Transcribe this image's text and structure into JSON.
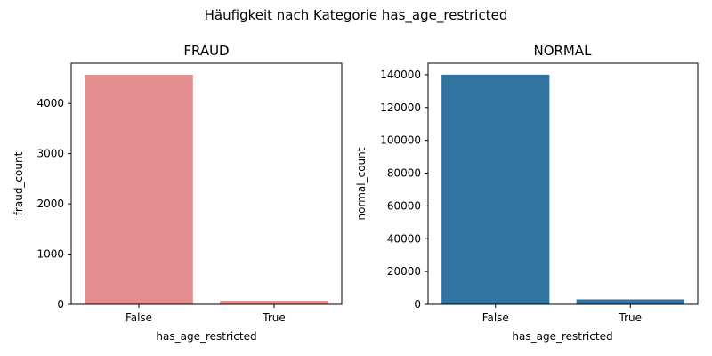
{
  "figure_title": "Häufigkeit nach Kategorie has_age_restricted",
  "chart_data": [
    {
      "type": "bar",
      "title": "FRAUD",
      "xlabel": "has_age_restricted",
      "ylabel": "fraud_count",
      "categories": [
        "False",
        "True"
      ],
      "values": [
        4570,
        70
      ],
      "ylim": [
        0,
        4800
      ],
      "yticks": [
        0,
        1000,
        2000,
        3000,
        4000
      ],
      "color": "#e48e8f",
      "grid": false
    },
    {
      "type": "bar",
      "title": "NORMAL",
      "xlabel": "has_age_restricted",
      "ylabel": "normal_count",
      "categories": [
        "False",
        "True"
      ],
      "values": [
        140000,
        3000
      ],
      "ylim": [
        0,
        147000
      ],
      "yticks": [
        0,
        20000,
        40000,
        60000,
        80000,
        100000,
        120000,
        140000
      ],
      "color": "#3274a1",
      "grid": false
    }
  ]
}
